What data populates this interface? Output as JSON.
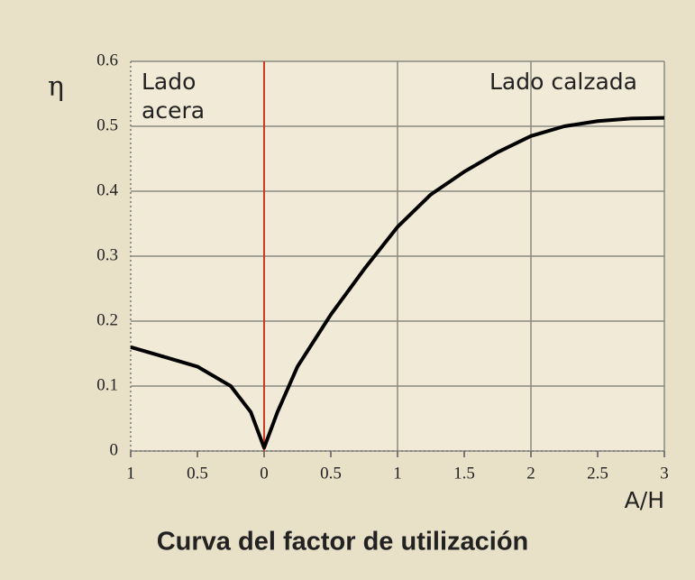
{
  "chart_data": {
    "type": "line",
    "title": "Curva del factor de utilización",
    "y_label": "η",
    "x_label": "A/H",
    "annotations": [
      [
        "Lado",
        "acera"
      ],
      [
        "Lado calzada"
      ]
    ],
    "x": [
      -1,
      -0.75,
      -0.5,
      -0.25,
      -0.1,
      0,
      0.1,
      0.25,
      0.5,
      0.75,
      1,
      1.25,
      1.5,
      1.75,
      2,
      2.25,
      2.5,
      2.75,
      3
    ],
    "series": [
      {
        "color": "#000000",
        "values": [
          0.16,
          0.145,
          0.13,
          0.1,
          0.06,
          0.005,
          0.06,
          0.13,
          0.21,
          0.28,
          0.345,
          0.395,
          0.43,
          0.46,
          0.485,
          0.5,
          0.508,
          0.512,
          0.513
        ]
      }
    ],
    "xlim": [
      -1,
      3
    ],
    "xticks": [
      {
        "value": -1,
        "label": "1"
      },
      {
        "value": -0.5,
        "label": "0.5"
      },
      0,
      0.5,
      1,
      1.5,
      2,
      2.5,
      3
    ],
    "ylim": [
      0,
      0.6
    ],
    "yticks": [
      0,
      0.1,
      0.2,
      0.3,
      0.4,
      0.5,
      0.6
    ],
    "grid": true,
    "x_grid_lines": [
      1,
      2
    ],
    "reference_line": {
      "x": 0,
      "color": "#d03a20"
    }
  }
}
